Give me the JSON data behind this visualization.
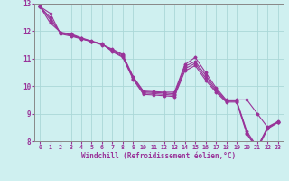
{
  "xlabel": "Windchill (Refroidissement éolien,°C)",
  "ylabel": "",
  "background_color": "#cff0f0",
  "grid_color": "#aad8d8",
  "line_color": "#993399",
  "spine_color": "#888888",
  "xlim": [
    -0.5,
    23.5
  ],
  "ylim": [
    8,
    13
  ],
  "xticks": [
    0,
    1,
    2,
    3,
    4,
    5,
    6,
    7,
    8,
    9,
    10,
    11,
    12,
    13,
    14,
    15,
    16,
    17,
    18,
    19,
    20,
    21,
    22,
    23
  ],
  "yticks": [
    8,
    9,
    10,
    11,
    12,
    13
  ],
  "series": [
    [
      12.9,
      12.65,
      11.9,
      11.82,
      11.72,
      11.62,
      11.5,
      11.35,
      11.15,
      10.35,
      9.82,
      9.8,
      9.78,
      9.78,
      10.78,
      11.05,
      10.5,
      9.95,
      9.5,
      9.5,
      9.5,
      9.0,
      8.5,
      8.7
    ],
    [
      12.9,
      12.5,
      11.92,
      11.85,
      11.73,
      11.62,
      11.52,
      11.32,
      11.12,
      10.32,
      9.79,
      9.77,
      9.75,
      9.72,
      10.72,
      10.9,
      10.4,
      9.88,
      9.47,
      9.47,
      8.35,
      7.78,
      8.52,
      8.72
    ],
    [
      12.9,
      12.42,
      11.94,
      11.88,
      11.74,
      11.63,
      11.53,
      11.28,
      11.08,
      10.28,
      9.75,
      9.73,
      9.7,
      9.67,
      10.63,
      10.83,
      10.3,
      9.83,
      9.45,
      9.45,
      8.3,
      7.73,
      8.48,
      8.7
    ],
    [
      12.9,
      12.3,
      11.96,
      11.9,
      11.76,
      11.64,
      11.54,
      11.25,
      11.05,
      10.25,
      9.7,
      9.68,
      9.65,
      9.62,
      10.55,
      10.75,
      10.22,
      9.78,
      9.42,
      9.42,
      8.25,
      7.7,
      8.45,
      8.68
    ]
  ]
}
